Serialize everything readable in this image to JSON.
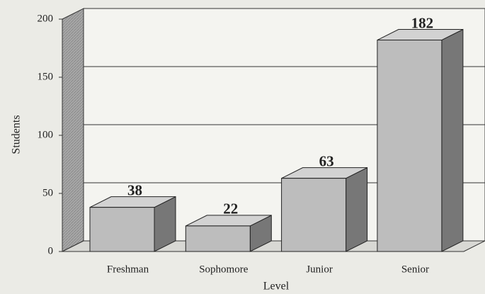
{
  "chart_data": {
    "type": "bar",
    "categories": [
      "Freshman",
      "Sophomore",
      "Junior",
      "Senior"
    ],
    "values": [
      38,
      22,
      63,
      182
    ],
    "color": "#bdbdbd",
    "ylim": [
      0,
      200
    ],
    "yticks": [
      0,
      50,
      100,
      150,
      200
    ],
    "ylabel": "Students",
    "xlabel": "Level",
    "grid": true
  }
}
